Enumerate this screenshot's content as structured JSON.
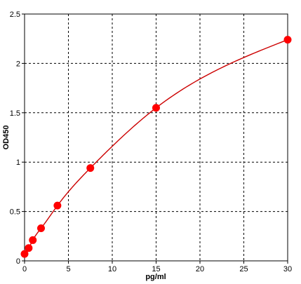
{
  "chart_data": {
    "type": "scatter",
    "xlabel": "pg/ml",
    "ylabel": "OD450",
    "xlim": [
      0,
      30
    ],
    "ylim": [
      0,
      2.5
    ],
    "x_ticks": [
      0,
      5,
      10,
      15,
      20,
      25,
      30
    ],
    "y_ticks": [
      0,
      0.5,
      1,
      1.5,
      2,
      2.5
    ],
    "x_tick_labels": [
      "0",
      "5",
      "10",
      "15",
      "20",
      "25",
      "30"
    ],
    "y_tick_labels": [
      "0",
      "0.5",
      "1",
      "1.5",
      "2",
      "2.5"
    ],
    "grid": true,
    "series": [
      {
        "points": [
          {
            "x": 0,
            "y": 0.07
          },
          {
            "x": 0.47,
            "y": 0.13
          },
          {
            "x": 0.94,
            "y": 0.21
          },
          {
            "x": 1.88,
            "y": 0.33
          },
          {
            "x": 3.75,
            "y": 0.56
          },
          {
            "x": 7.5,
            "y": 0.94
          },
          {
            "x": 15,
            "y": 1.55
          },
          {
            "x": 30,
            "y": 2.24
          }
        ],
        "color": "#ff0000"
      }
    ],
    "fit_curve": {
      "color": "#cc0000"
    }
  }
}
